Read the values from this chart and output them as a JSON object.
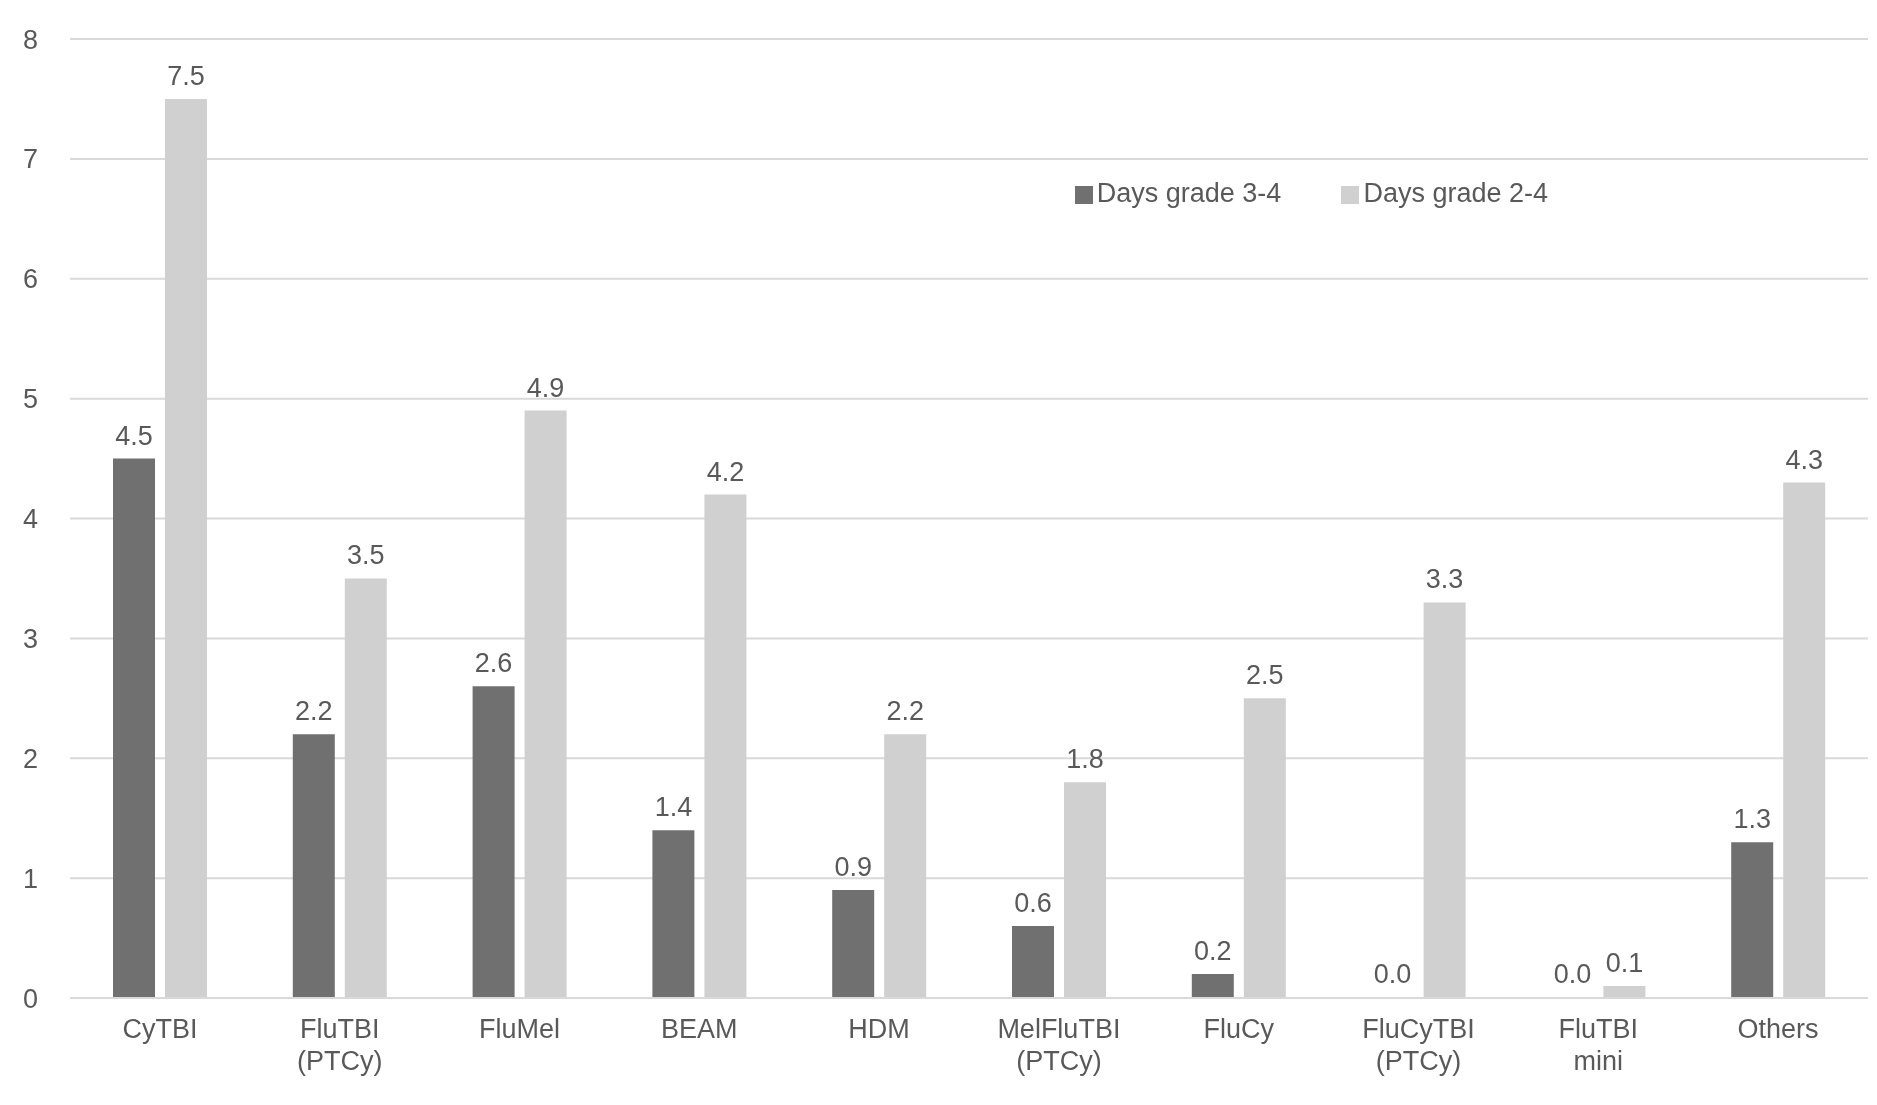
{
  "chart_data": {
    "type": "bar",
    "categories": [
      "CyTBI",
      "FluTBI (PTCy)",
      "FluMel",
      "BEAM",
      "HDM",
      "MelFluTBI (PTCy)",
      "FluCy",
      "FluCyTBI (PTCy)",
      "FluTBI mini",
      "Others"
    ],
    "series": [
      {
        "name": "Days grade 3-4",
        "color": "#707070",
        "values": [
          4.5,
          2.2,
          2.6,
          1.4,
          0.9,
          0.6,
          0.2,
          0.0,
          0.0,
          1.3
        ],
        "value_labels": [
          "4.5",
          "2.2",
          "2.6",
          "1.4",
          "0.9",
          "0.6",
          "0.2",
          "0.0",
          "0.0",
          "1.3"
        ]
      },
      {
        "name": "Days grade 2-4",
        "color": "#d0d0d0",
        "values": [
          7.5,
          3.5,
          4.9,
          4.2,
          2.2,
          1.8,
          2.5,
          3.3,
          0.1,
          4.3
        ],
        "value_labels": [
          "7.5",
          "3.5",
          "4.9",
          "4.2",
          "2.2",
          "1.8",
          "2.5",
          "3.3",
          "0.1",
          "4.3"
        ]
      }
    ],
    "ylim": [
      0,
      8
    ],
    "yticks": [
      0,
      1,
      2,
      3,
      4,
      5,
      6,
      7,
      8
    ],
    "grid": "y",
    "legend": "top right"
  }
}
